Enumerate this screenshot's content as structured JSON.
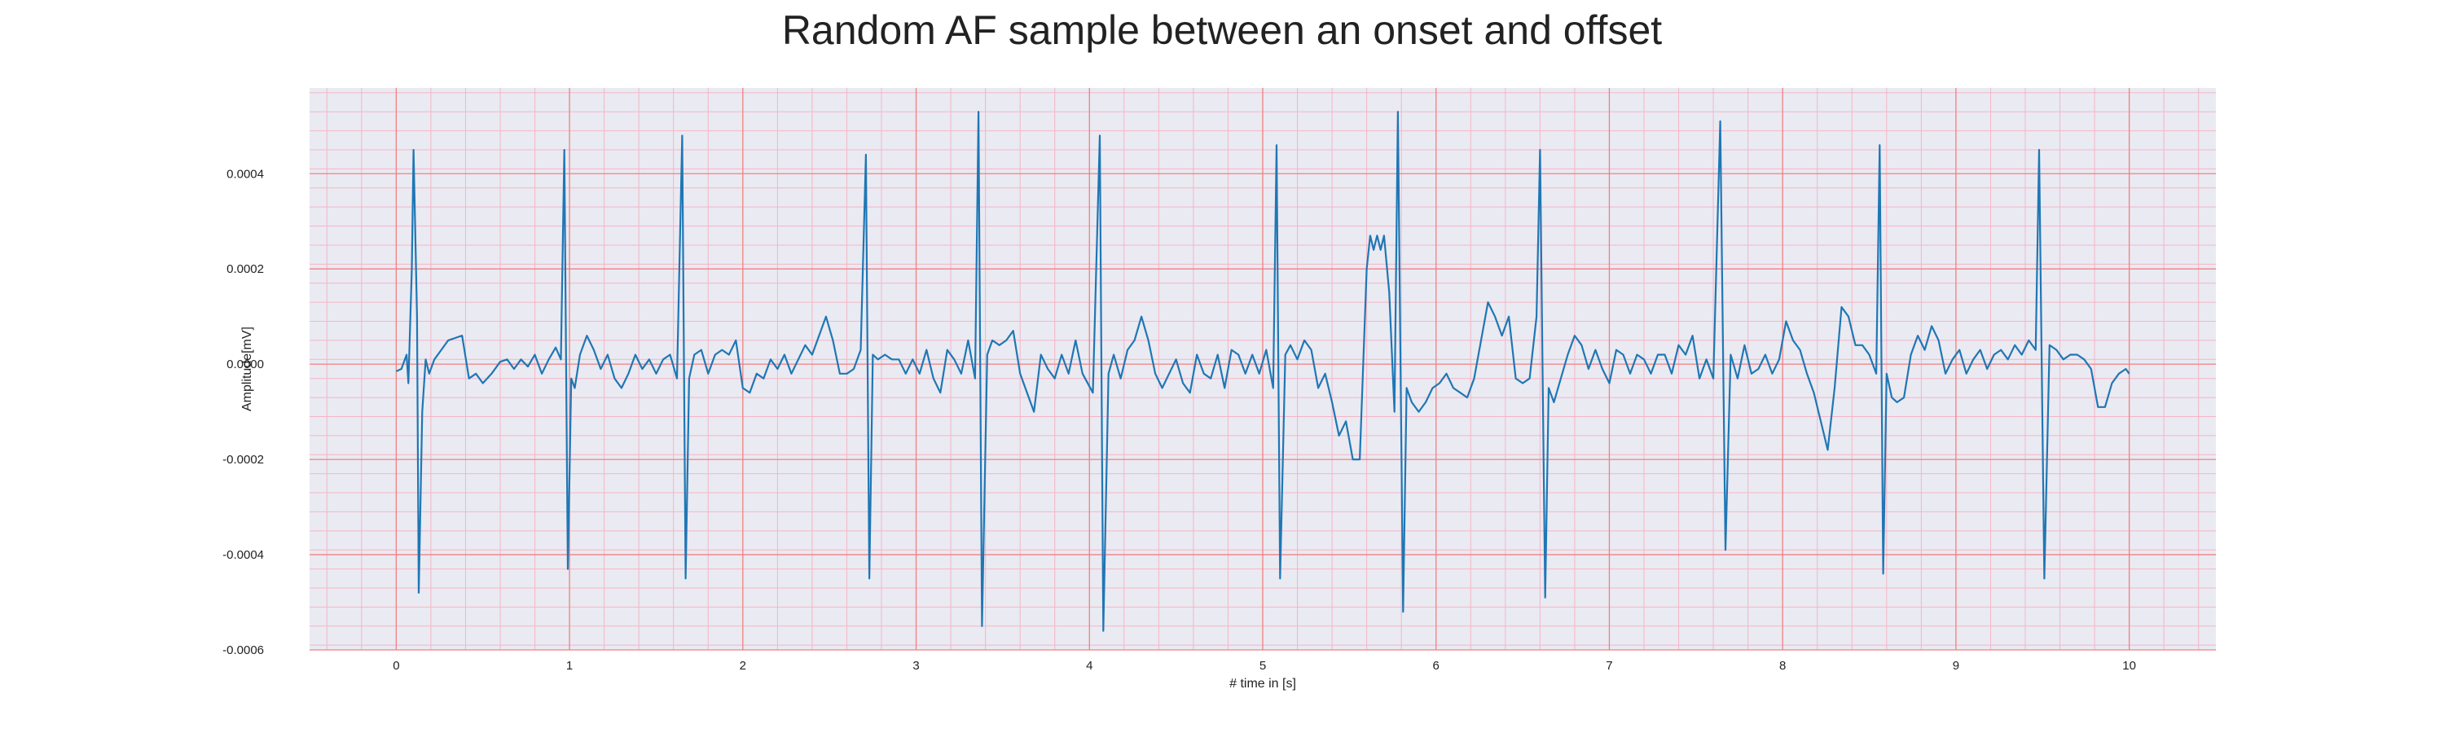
{
  "chart_data": {
    "type": "line",
    "title": "Random AF sample between an onset and offset",
    "xlabel": "# time in [s]",
    "ylabel": "Amplitude[mV]",
    "xlim": [
      -0.5,
      10.5
    ],
    "ylim": [
      -0.0006,
      0.00058
    ],
    "x_ticks": [
      0,
      1,
      2,
      3,
      4,
      5,
      6,
      7,
      8,
      9,
      10
    ],
    "x_tick_labels": [
      "0",
      "1",
      "2",
      "3",
      "4",
      "5",
      "6",
      "7",
      "8",
      "9",
      "10"
    ],
    "y_ticks": [
      0.0004,
      0.0002,
      0.0,
      -0.0002,
      -0.0004,
      -0.0006
    ],
    "y_tick_labels": [
      "0.0004",
      "0.0002",
      "0.0000",
      "-0.0002",
      "-0.0004",
      "-0.0006"
    ],
    "grid": true,
    "minor_grid": true,
    "legend": "none",
    "colors": {
      "line": "#1f77b4",
      "background": "#eaeaf2",
      "major_grid": "#f08080",
      "minor_grid": "#f5b5c5"
    },
    "series": [
      {
        "values": [
          [
            0.0,
            -1.5e-05
          ],
          [
            0.03,
            -1e-05
          ],
          [
            0.06,
            2e-05
          ],
          [
            0.07,
            -4e-05
          ],
          [
            0.09,
            0.0002
          ],
          [
            0.1,
            0.00045
          ],
          [
            0.12,
            0.0001
          ],
          [
            0.13,
            -0.00048
          ],
          [
            0.15,
            -0.0001
          ],
          [
            0.17,
            1e-05
          ],
          [
            0.19,
            -2e-05
          ],
          [
            0.22,
            1e-05
          ],
          [
            0.26,
            3e-05
          ],
          [
            0.3,
            5e-05
          ],
          [
            0.34,
            5.5e-05
          ],
          [
            0.38,
            6e-05
          ],
          [
            0.42,
            -3e-05
          ],
          [
            0.46,
            -2e-05
          ],
          [
            0.5,
            -4e-05
          ],
          [
            0.55,
            -2e-05
          ],
          [
            0.6,
            5e-06
          ],
          [
            0.64,
            1e-05
          ],
          [
            0.68,
            -1e-05
          ],
          [
            0.72,
            1e-05
          ],
          [
            0.76,
            -5e-06
          ],
          [
            0.8,
            2e-05
          ],
          [
            0.84,
            -2e-05
          ],
          [
            0.88,
            1e-05
          ],
          [
            0.92,
            3.5e-05
          ],
          [
            0.95,
            1e-05
          ],
          [
            0.97,
            0.00045
          ],
          [
            0.99,
            -0.00043
          ],
          [
            1.01,
            -3e-05
          ],
          [
            1.03,
            -5e-05
          ],
          [
            1.06,
            2e-05
          ],
          [
            1.1,
            6e-05
          ],
          [
            1.14,
            3e-05
          ],
          [
            1.18,
            -1e-05
          ],
          [
            1.22,
            2e-05
          ],
          [
            1.26,
            -3e-05
          ],
          [
            1.3,
            -5e-05
          ],
          [
            1.34,
            -2e-05
          ],
          [
            1.38,
            2e-05
          ],
          [
            1.42,
            -1e-05
          ],
          [
            1.46,
            1e-05
          ],
          [
            1.5,
            -2e-05
          ],
          [
            1.54,
            1e-05
          ],
          [
            1.58,
            2e-05
          ],
          [
            1.62,
            -3e-05
          ],
          [
            1.65,
            0.00048
          ],
          [
            1.67,
            -0.00045
          ],
          [
            1.69,
            -3e-05
          ],
          [
            1.72,
            2e-05
          ],
          [
            1.76,
            3e-05
          ],
          [
            1.8,
            -2e-05
          ],
          [
            1.84,
            2e-05
          ],
          [
            1.88,
            3e-05
          ],
          [
            1.92,
            2e-05
          ],
          [
            1.96,
            5e-05
          ],
          [
            2.0,
            -5e-05
          ],
          [
            2.04,
            -6e-05
          ],
          [
            2.08,
            -2e-05
          ],
          [
            2.12,
            -3e-05
          ],
          [
            2.16,
            1e-05
          ],
          [
            2.2,
            -1e-05
          ],
          [
            2.24,
            2e-05
          ],
          [
            2.28,
            -2e-05
          ],
          [
            2.32,
            1e-05
          ],
          [
            2.36,
            4e-05
          ],
          [
            2.4,
            2e-05
          ],
          [
            2.44,
            6e-05
          ],
          [
            2.48,
            0.0001
          ],
          [
            2.52,
            5e-05
          ],
          [
            2.56,
            -2e-05
          ],
          [
            2.6,
            -2e-05
          ],
          [
            2.64,
            -1e-05
          ],
          [
            2.68,
            3e-05
          ],
          [
            2.71,
            0.00044
          ],
          [
            2.73,
            -0.00045
          ],
          [
            2.75,
            2e-05
          ],
          [
            2.78,
            1e-05
          ],
          [
            2.82,
            2e-05
          ],
          [
            2.86,
            1e-05
          ],
          [
            2.9,
            1e-05
          ],
          [
            2.94,
            -2e-05
          ],
          [
            2.98,
            1e-05
          ],
          [
            3.02,
            -2e-05
          ],
          [
            3.06,
            3e-05
          ],
          [
            3.1,
            -3e-05
          ],
          [
            3.14,
            -6e-05
          ],
          [
            3.18,
            3e-05
          ],
          [
            3.22,
            1e-05
          ],
          [
            3.26,
            -2e-05
          ],
          [
            3.3,
            5e-05
          ],
          [
            3.34,
            -3e-05
          ],
          [
            3.36,
            0.00053
          ],
          [
            3.38,
            -0.00055
          ],
          [
            3.41,
            2e-05
          ],
          [
            3.44,
            5e-05
          ],
          [
            3.48,
            4e-05
          ],
          [
            3.52,
            5e-05
          ],
          [
            3.56,
            7e-05
          ],
          [
            3.6,
            -2e-05
          ],
          [
            3.64,
            -6e-05
          ],
          [
            3.68,
            -0.0001
          ],
          [
            3.72,
            2e-05
          ],
          [
            3.76,
            -1e-05
          ],
          [
            3.8,
            -3e-05
          ],
          [
            3.84,
            2e-05
          ],
          [
            3.88,
            -2e-05
          ],
          [
            3.92,
            5e-05
          ],
          [
            3.96,
            -2e-05
          ],
          [
            4.02,
            -6e-05
          ],
          [
            4.06,
            0.00048
          ],
          [
            4.08,
            -0.00056
          ],
          [
            4.11,
            -2e-05
          ],
          [
            4.14,
            2e-05
          ],
          [
            4.18,
            -3e-05
          ],
          [
            4.22,
            3e-05
          ],
          [
            4.26,
            5e-05
          ],
          [
            4.3,
            0.0001
          ],
          [
            4.34,
            5e-05
          ],
          [
            4.38,
            -2e-05
          ],
          [
            4.42,
            -5e-05
          ],
          [
            4.46,
            -2e-05
          ],
          [
            4.5,
            1e-05
          ],
          [
            4.54,
            -4e-05
          ],
          [
            4.58,
            -6e-05
          ],
          [
            4.62,
            2e-05
          ],
          [
            4.66,
            -2e-05
          ],
          [
            4.7,
            -3e-05
          ],
          [
            4.74,
            2e-05
          ],
          [
            4.78,
            -5e-05
          ],
          [
            4.82,
            3e-05
          ],
          [
            4.86,
            2e-05
          ],
          [
            4.9,
            -2e-05
          ],
          [
            4.94,
            2e-05
          ],
          [
            4.98,
            -2e-05
          ],
          [
            5.02,
            3e-05
          ],
          [
            5.06,
            -5e-05
          ],
          [
            5.08,
            0.00046
          ],
          [
            5.1,
            -0.00045
          ],
          [
            5.13,
            2e-05
          ],
          [
            5.16,
            4e-05
          ],
          [
            5.2,
            1e-05
          ],
          [
            5.24,
            5e-05
          ],
          [
            5.28,
            3e-05
          ],
          [
            5.32,
            -5e-05
          ],
          [
            5.36,
            -2e-05
          ],
          [
            5.4,
            -8e-05
          ],
          [
            5.44,
            -0.00015
          ],
          [
            5.48,
            -0.00012
          ],
          [
            5.52,
            -0.0002
          ],
          [
            5.56,
            -0.0002
          ],
          [
            5.6,
            0.0002
          ],
          [
            5.62,
            0.00027
          ],
          [
            5.64,
            0.00024
          ],
          [
            5.66,
            0.00027
          ],
          [
            5.68,
            0.00024
          ],
          [
            5.7,
            0.00027
          ],
          [
            5.73,
            0.00015
          ],
          [
            5.76,
            -0.0001
          ],
          [
            5.78,
            0.00053
          ],
          [
            5.81,
            -0.00052
          ],
          [
            5.83,
            -5e-05
          ],
          [
            5.86,
            -8e-05
          ],
          [
            5.9,
            -0.0001
          ],
          [
            5.94,
            -8e-05
          ],
          [
            5.98,
            -5e-05
          ],
          [
            6.02,
            -4e-05
          ],
          [
            6.06,
            -2e-05
          ],
          [
            6.1,
            -5e-05
          ],
          [
            6.14,
            -6e-05
          ],
          [
            6.18,
            -7e-05
          ],
          [
            6.22,
            -3e-05
          ],
          [
            6.26,
            5e-05
          ],
          [
            6.3,
            0.00013
          ],
          [
            6.34,
            0.0001
          ],
          [
            6.38,
            6e-05
          ],
          [
            6.42,
            0.0001
          ],
          [
            6.46,
            -3e-05
          ],
          [
            6.5,
            -4e-05
          ],
          [
            6.54,
            -3e-05
          ],
          [
            6.58,
            0.0001
          ],
          [
            6.6,
            0.00045
          ],
          [
            6.63,
            -0.00049
          ],
          [
            6.65,
            -5e-05
          ],
          [
            6.68,
            -8e-05
          ],
          [
            6.72,
            -3e-05
          ],
          [
            6.76,
            2e-05
          ],
          [
            6.8,
            6e-05
          ],
          [
            6.84,
            4e-05
          ],
          [
            6.88,
            -1e-05
          ],
          [
            6.92,
            3e-05
          ],
          [
            6.96,
            -1e-05
          ],
          [
            7.0,
            -4e-05
          ],
          [
            7.04,
            3e-05
          ],
          [
            7.08,
            2e-05
          ],
          [
            7.12,
            -2e-05
          ],
          [
            7.16,
            2e-05
          ],
          [
            7.2,
            1e-05
          ],
          [
            7.24,
            -2e-05
          ],
          [
            7.28,
            2e-05
          ],
          [
            7.32,
            2e-05
          ],
          [
            7.36,
            -2e-05
          ],
          [
            7.4,
            4e-05
          ],
          [
            7.44,
            2e-05
          ],
          [
            7.48,
            6e-05
          ],
          [
            7.52,
            -3e-05
          ],
          [
            7.56,
            1e-05
          ],
          [
            7.6,
            -3e-05
          ],
          [
            7.64,
            0.00051
          ],
          [
            7.67,
            -0.00039
          ],
          [
            7.7,
            2e-05
          ],
          [
            7.74,
            -3e-05
          ],
          [
            7.78,
            4e-05
          ],
          [
            7.82,
            -2e-05
          ],
          [
            7.86,
            -1e-05
          ],
          [
            7.9,
            2e-05
          ],
          [
            7.94,
            -2e-05
          ],
          [
            7.98,
            1e-05
          ],
          [
            8.02,
            9e-05
          ],
          [
            8.06,
            5e-05
          ],
          [
            8.1,
            3e-05
          ],
          [
            8.14,
            -2e-05
          ],
          [
            8.18,
            -6e-05
          ],
          [
            8.22,
            -0.00012
          ],
          [
            8.26,
            -0.00018
          ],
          [
            8.3,
            -5e-05
          ],
          [
            8.34,
            0.00012
          ],
          [
            8.38,
            0.0001
          ],
          [
            8.42,
            4e-05
          ],
          [
            8.46,
            4e-05
          ],
          [
            8.5,
            2e-05
          ],
          [
            8.54,
            -2e-05
          ],
          [
            8.56,
            0.00046
          ],
          [
            8.58,
            -0.00044
          ],
          [
            8.6,
            -2e-05
          ],
          [
            8.63,
            -7e-05
          ],
          [
            8.66,
            -8e-05
          ],
          [
            8.7,
            -7e-05
          ],
          [
            8.74,
            2e-05
          ],
          [
            8.78,
            6e-05
          ],
          [
            8.82,
            3e-05
          ],
          [
            8.86,
            8e-05
          ],
          [
            8.9,
            5e-05
          ],
          [
            8.94,
            -2e-05
          ],
          [
            8.98,
            1e-05
          ],
          [
            9.02,
            3e-05
          ],
          [
            9.06,
            -2e-05
          ],
          [
            9.1,
            1e-05
          ],
          [
            9.14,
            3e-05
          ],
          [
            9.18,
            -1e-05
          ],
          [
            9.22,
            2e-05
          ],
          [
            9.26,
            3e-05
          ],
          [
            9.3,
            1e-05
          ],
          [
            9.34,
            4e-05
          ],
          [
            9.38,
            2e-05
          ],
          [
            9.42,
            5e-05
          ],
          [
            9.46,
            3e-05
          ],
          [
            9.48,
            0.00045
          ],
          [
            9.51,
            -0.00045
          ],
          [
            9.54,
            4e-05
          ],
          [
            9.58,
            3e-05
          ],
          [
            9.62,
            1e-05
          ],
          [
            9.66,
            2e-05
          ],
          [
            9.7,
            2e-05
          ],
          [
            9.74,
            1e-05
          ],
          [
            9.78,
            -1e-05
          ],
          [
            9.82,
            -9e-05
          ],
          [
            9.86,
            -9e-05
          ],
          [
            9.9,
            -4e-05
          ],
          [
            9.94,
            -2e-05
          ],
          [
            9.98,
            -1e-05
          ],
          [
            10.0,
            -2e-05
          ]
        ]
      }
    ]
  }
}
